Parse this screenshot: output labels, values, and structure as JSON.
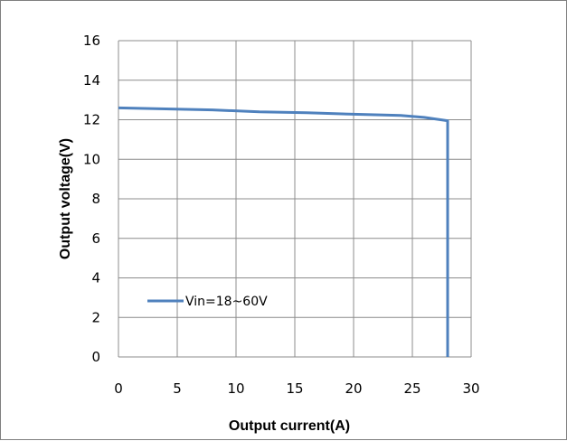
{
  "chart_data": {
    "type": "line",
    "title": "",
    "xlabel": "Output current(A)",
    "ylabel": "Output voltage(V)",
    "xlim": [
      0,
      30
    ],
    "ylim": [
      0,
      16
    ],
    "xticks": [
      0,
      5,
      10,
      15,
      20,
      25,
      30
    ],
    "yticks": [
      0,
      2,
      4,
      6,
      8,
      10,
      12,
      14,
      16
    ],
    "grid": true,
    "legend_position": "lower-left",
    "series": [
      {
        "name": "Vin=18~60V",
        "color": "#4f81bd",
        "x": [
          0,
          4,
          8,
          12,
          16,
          20,
          24,
          26,
          28,
          28
        ],
        "y": [
          12.6,
          12.55,
          12.5,
          12.4,
          12.35,
          12.28,
          12.22,
          12.12,
          11.95,
          0
        ]
      }
    ]
  }
}
